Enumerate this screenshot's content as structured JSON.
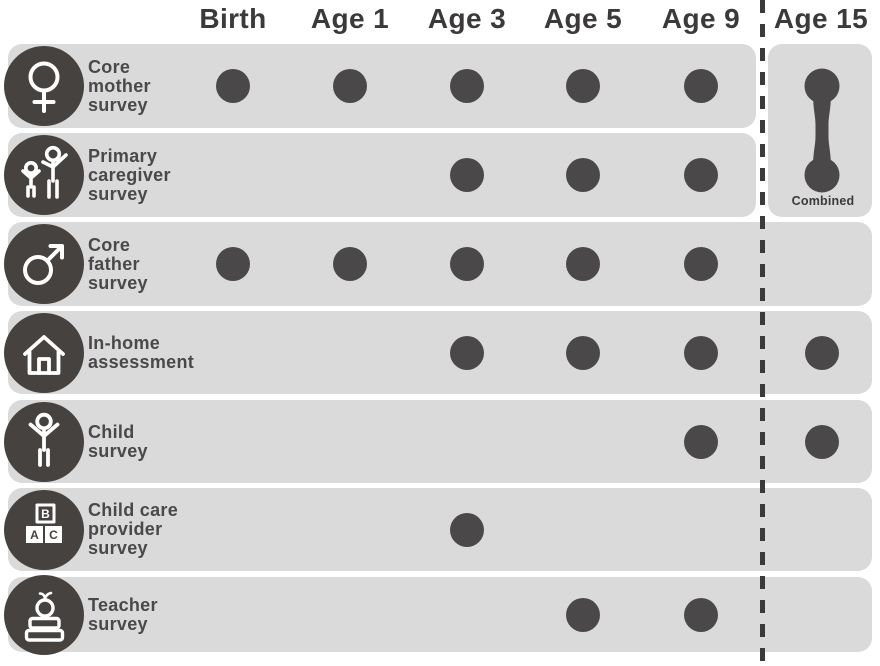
{
  "colors": {
    "page_background": "#ffffff",
    "row_background": "#dadada",
    "dot": "#4a4848",
    "icon_circle": "#454240",
    "header_text": "#3b3939",
    "label_text": "#4a4848",
    "dashed_line": "#3b3939"
  },
  "chart_data": {
    "type": "table",
    "title": "",
    "columns": [
      "Birth",
      "Age 1",
      "Age 3",
      "Age 5",
      "Age 9",
      "Age 15"
    ],
    "rows": [
      {
        "label": "Core mother survey",
        "label_lines": [
          "Core",
          "mother",
          "survey"
        ],
        "icon": "female-icon",
        "waves": [
          1,
          1,
          1,
          1,
          1,
          0
        ]
      },
      {
        "label": "Primary caregiver survey",
        "label_lines": [
          "Primary",
          "caregiver",
          "survey"
        ],
        "icon": "caregiver-icon",
        "waves": [
          0,
          0,
          1,
          1,
          1,
          0
        ]
      },
      {
        "label": "Core father survey",
        "label_lines": [
          "Core",
          "father",
          "survey"
        ],
        "icon": "male-icon",
        "waves": [
          1,
          1,
          1,
          1,
          1,
          0
        ]
      },
      {
        "label": "In-home assessment",
        "label_lines": [
          "In-home",
          "assessment"
        ],
        "icon": "house-icon",
        "waves": [
          0,
          0,
          1,
          1,
          1,
          1
        ]
      },
      {
        "label": "Child survey",
        "label_lines": [
          "Child",
          "survey"
        ],
        "icon": "child-icon",
        "waves": [
          0,
          0,
          0,
          0,
          1,
          1
        ]
      },
      {
        "label": "Child care provider survey",
        "label_lines": [
          "Child care",
          "provider",
          "survey"
        ],
        "icon": "blocks-icon",
        "waves": [
          0,
          0,
          1,
          0,
          0,
          0
        ]
      },
      {
        "label": "Teacher survey",
        "label_lines": [
          "Teacher",
          "survey"
        ],
        "icon": "books-icon",
        "waves": [
          0,
          0,
          0,
          1,
          1,
          0
        ]
      }
    ],
    "combined": {
      "label": "Combined",
      "rows": [
        "Core mother survey",
        "Primary caregiver survey"
      ],
      "column": "Age 15"
    },
    "legend_note": "Dashed vertical line separates Age 15 wave from earlier waves"
  }
}
